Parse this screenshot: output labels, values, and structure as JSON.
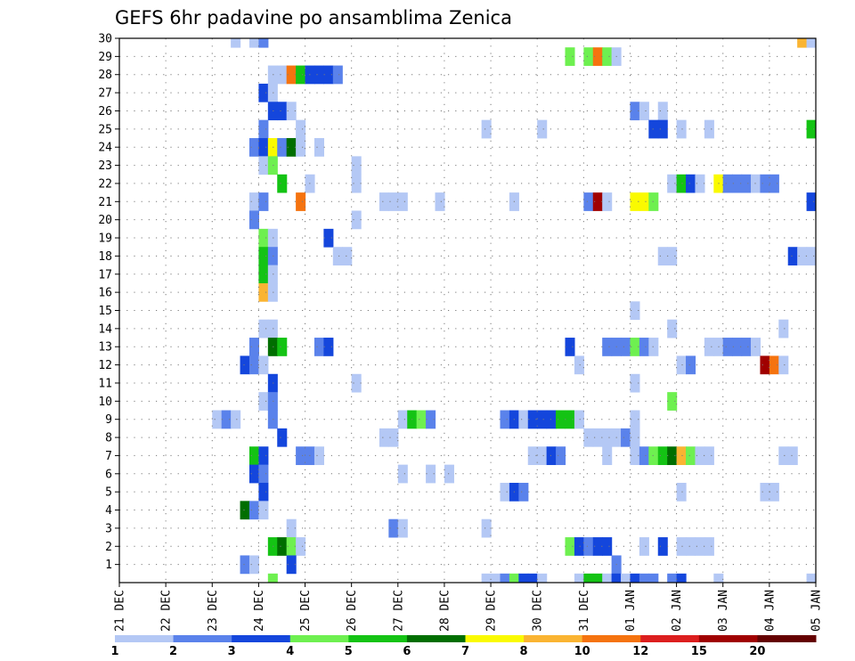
{
  "chart_data": {
    "type": "heatmap",
    "title": "GEFS 6hr padavine po ansamblima Zenica",
    "xlabel": "",
    "ylabel": "",
    "y_ticks": [
      "1",
      "2",
      "3",
      "4",
      "5",
      "6",
      "7",
      "8",
      "9",
      "10",
      "11",
      "12",
      "13",
      "14",
      "15",
      "16",
      "17",
      "18",
      "19",
      "20",
      "21",
      "22",
      "23",
      "24",
      "25",
      "26",
      "27",
      "28",
      "29",
      "30"
    ],
    "x_ticks": [
      "21 DEC",
      "22 DEC",
      "23 DEC",
      "24 DEC",
      "25 DEC",
      "26 DEC",
      "27 DEC",
      "28 DEC",
      "29 DEC",
      "30 DEC",
      "31 DEC",
      "01 JAN",
      "02 JAN",
      "03 JAN",
      "04 JAN",
      "05 JAN"
    ],
    "x_range_days": [
      0,
      15
    ],
    "y_range_members": [
      0,
      30
    ],
    "colorbar": {
      "labels": [
        "1",
        "2",
        "3",
        "4",
        "5",
        "6",
        "7",
        "8",
        "10",
        "12",
        "15",
        "20"
      ],
      "colors": [
        "#b4c8f5",
        "#5a82eb",
        "#1446dc",
        "#6ef050",
        "#14c314",
        "#006e00",
        "#fafa00",
        "#fab432",
        "#f5730f",
        "#dc1e1e",
        "#a00000",
        "#640000"
      ]
    },
    "cells": [
      {
        "d": 2.4,
        "m": 30,
        "c": 0
      },
      {
        "d": 2.8,
        "m": 30,
        "c": 0
      },
      {
        "d": 3.0,
        "m": 30,
        "c": 1
      },
      {
        "d": 14.6,
        "m": 30,
        "c": 7
      },
      {
        "d": 14.8,
        "m": 30,
        "c": 0
      },
      {
        "d": 9.6,
        "m": 29,
        "c": 3
      },
      {
        "d": 10.0,
        "m": 29,
        "c": 3
      },
      {
        "d": 10.2,
        "m": 29,
        "c": 8
      },
      {
        "d": 10.4,
        "m": 29,
        "c": 3
      },
      {
        "d": 10.6,
        "m": 29,
        "c": 0
      },
      {
        "d": 3.2,
        "m": 28,
        "c": 0
      },
      {
        "d": 3.4,
        "m": 28,
        "c": 0
      },
      {
        "d": 3.6,
        "m": 28,
        "c": 8
      },
      {
        "d": 3.8,
        "m": 28,
        "c": 4
      },
      {
        "d": 4.0,
        "m": 28,
        "c": 2
      },
      {
        "d": 4.2,
        "m": 28,
        "c": 2
      },
      {
        "d": 4.4,
        "m": 28,
        "c": 2
      },
      {
        "d": 4.6,
        "m": 28,
        "c": 1
      },
      {
        "d": 3.0,
        "m": 27,
        "c": 2
      },
      {
        "d": 3.2,
        "m": 27,
        "c": 0
      },
      {
        "d": 3.2,
        "m": 26,
        "c": 2
      },
      {
        "d": 3.4,
        "m": 26,
        "c": 2
      },
      {
        "d": 3.6,
        "m": 26,
        "c": 0
      },
      {
        "d": 11.0,
        "m": 26,
        "c": 1
      },
      {
        "d": 11.2,
        "m": 26,
        "c": 0
      },
      {
        "d": 11.6,
        "m": 26,
        "c": 0
      },
      {
        "d": 3.0,
        "m": 25,
        "c": 1
      },
      {
        "d": 3.8,
        "m": 25,
        "c": 0
      },
      {
        "d": 7.8,
        "m": 25,
        "c": 0
      },
      {
        "d": 9.0,
        "m": 25,
        "c": 0
      },
      {
        "d": 11.4,
        "m": 25,
        "c": 2
      },
      {
        "d": 11.6,
        "m": 25,
        "c": 2
      },
      {
        "d": 12.0,
        "m": 25,
        "c": 0
      },
      {
        "d": 12.6,
        "m": 25,
        "c": 0
      },
      {
        "d": 14.8,
        "m": 25,
        "c": 4
      },
      {
        "d": 15.0,
        "m": 25,
        "c": 0
      },
      {
        "d": 2.8,
        "m": 24,
        "c": 1
      },
      {
        "d": 3.0,
        "m": 24,
        "c": 2
      },
      {
        "d": 3.2,
        "m": 24,
        "c": 6
      },
      {
        "d": 3.4,
        "m": 24,
        "c": 1
      },
      {
        "d": 3.6,
        "m": 24,
        "c": 5
      },
      {
        "d": 3.8,
        "m": 24,
        "c": 0
      },
      {
        "d": 4.2,
        "m": 24,
        "c": 0
      },
      {
        "d": 3.0,
        "m": 23,
        "c": 0
      },
      {
        "d": 3.2,
        "m": 23,
        "c": 3
      },
      {
        "d": 5.0,
        "m": 23,
        "c": 0
      },
      {
        "d": 15.0,
        "m": 23,
        "c": 0
      },
      {
        "d": 3.4,
        "m": 22,
        "c": 4
      },
      {
        "d": 4.0,
        "m": 22,
        "c": 0
      },
      {
        "d": 5.0,
        "m": 22,
        "c": 0
      },
      {
        "d": 11.8,
        "m": 22,
        "c": 0
      },
      {
        "d": 12.0,
        "m": 22,
        "c": 4
      },
      {
        "d": 12.2,
        "m": 22,
        "c": 2
      },
      {
        "d": 12.4,
        "m": 22,
        "c": 0
      },
      {
        "d": 12.8,
        "m": 22,
        "c": 6
      },
      {
        "d": 13.0,
        "m": 22,
        "c": 1
      },
      {
        "d": 13.2,
        "m": 22,
        "c": 1
      },
      {
        "d": 13.4,
        "m": 22,
        "c": 1
      },
      {
        "d": 13.6,
        "m": 22,
        "c": 0
      },
      {
        "d": 13.8,
        "m": 22,
        "c": 1
      },
      {
        "d": 14.0,
        "m": 22,
        "c": 1
      },
      {
        "d": 2.8,
        "m": 21,
        "c": 0
      },
      {
        "d": 3.0,
        "m": 21,
        "c": 1
      },
      {
        "d": 3.8,
        "m": 21,
        "c": 8
      },
      {
        "d": 5.6,
        "m": 21,
        "c": 0
      },
      {
        "d": 5.8,
        "m": 21,
        "c": 0
      },
      {
        "d": 6.0,
        "m": 21,
        "c": 0
      },
      {
        "d": 6.8,
        "m": 21,
        "c": 0
      },
      {
        "d": 8.4,
        "m": 21,
        "c": 0
      },
      {
        "d": 10.0,
        "m": 21,
        "c": 1
      },
      {
        "d": 10.2,
        "m": 21,
        "c": 10
      },
      {
        "d": 10.4,
        "m": 21,
        "c": 0
      },
      {
        "d": 11.0,
        "m": 21,
        "c": 6
      },
      {
        "d": 11.2,
        "m": 21,
        "c": 6
      },
      {
        "d": 11.4,
        "m": 21,
        "c": 3
      },
      {
        "d": 14.8,
        "m": 21,
        "c": 2
      },
      {
        "d": 15.0,
        "m": 21,
        "c": 0
      },
      {
        "d": 2.8,
        "m": 20,
        "c": 1
      },
      {
        "d": 5.0,
        "m": 20,
        "c": 0
      },
      {
        "d": 3.0,
        "m": 19,
        "c": 3
      },
      {
        "d": 3.2,
        "m": 19,
        "c": 0
      },
      {
        "d": 4.4,
        "m": 19,
        "c": 2
      },
      {
        "d": 3.0,
        "m": 18,
        "c": 4
      },
      {
        "d": 3.2,
        "m": 18,
        "c": 1
      },
      {
        "d": 4.6,
        "m": 18,
        "c": 0
      },
      {
        "d": 4.8,
        "m": 18,
        "c": 0
      },
      {
        "d": 11.6,
        "m": 18,
        "c": 0
      },
      {
        "d": 11.8,
        "m": 18,
        "c": 0
      },
      {
        "d": 14.4,
        "m": 18,
        "c": 2
      },
      {
        "d": 14.6,
        "m": 18,
        "c": 0
      },
      {
        "d": 14.8,
        "m": 18,
        "c": 0
      },
      {
        "d": 15.0,
        "m": 18,
        "c": 6
      },
      {
        "d": 3.0,
        "m": 17,
        "c": 4
      },
      {
        "d": 3.2,
        "m": 17,
        "c": 0
      },
      {
        "d": 3.0,
        "m": 16,
        "c": 7
      },
      {
        "d": 3.2,
        "m": 16,
        "c": 0
      },
      {
        "d": 11.0,
        "m": 15,
        "c": 0
      },
      {
        "d": 3.0,
        "m": 14,
        "c": 0
      },
      {
        "d": 3.2,
        "m": 14,
        "c": 0
      },
      {
        "d": 11.8,
        "m": 14,
        "c": 0
      },
      {
        "d": 14.2,
        "m": 14,
        "c": 0
      },
      {
        "d": 2.8,
        "m": 13,
        "c": 1
      },
      {
        "d": 3.2,
        "m": 13,
        "c": 5
      },
      {
        "d": 3.4,
        "m": 13,
        "c": 4
      },
      {
        "d": 4.2,
        "m": 13,
        "c": 1
      },
      {
        "d": 4.4,
        "m": 13,
        "c": 2
      },
      {
        "d": 9.6,
        "m": 13,
        "c": 2
      },
      {
        "d": 10.4,
        "m": 13,
        "c": 1
      },
      {
        "d": 10.6,
        "m": 13,
        "c": 1
      },
      {
        "d": 10.8,
        "m": 13,
        "c": 1
      },
      {
        "d": 11.0,
        "m": 13,
        "c": 3
      },
      {
        "d": 11.2,
        "m": 13,
        "c": 1
      },
      {
        "d": 11.4,
        "m": 13,
        "c": 0
      },
      {
        "d": 12.6,
        "m": 13,
        "c": 0
      },
      {
        "d": 12.8,
        "m": 13,
        "c": 0
      },
      {
        "d": 13.0,
        "m": 13,
        "c": 1
      },
      {
        "d": 13.2,
        "m": 13,
        "c": 1
      },
      {
        "d": 13.4,
        "m": 13,
        "c": 1
      },
      {
        "d": 13.6,
        "m": 13,
        "c": 0
      },
      {
        "d": 2.6,
        "m": 12,
        "c": 2
      },
      {
        "d": 2.8,
        "m": 12,
        "c": 1
      },
      {
        "d": 3.0,
        "m": 12,
        "c": 0
      },
      {
        "d": 9.8,
        "m": 12,
        "c": 0
      },
      {
        "d": 12.0,
        "m": 12,
        "c": 0
      },
      {
        "d": 12.2,
        "m": 12,
        "c": 1
      },
      {
        "d": 13.8,
        "m": 12,
        "c": 10
      },
      {
        "d": 14.0,
        "m": 12,
        "c": 8
      },
      {
        "d": 14.2,
        "m": 12,
        "c": 0
      },
      {
        "d": 3.2,
        "m": 11,
        "c": 2
      },
      {
        "d": 5.0,
        "m": 11,
        "c": 0
      },
      {
        "d": 11.0,
        "m": 11,
        "c": 0
      },
      {
        "d": 3.0,
        "m": 10,
        "c": 0
      },
      {
        "d": 3.2,
        "m": 10,
        "c": 1
      },
      {
        "d": 11.8,
        "m": 10,
        "c": 3
      },
      {
        "d": 2.0,
        "m": 9,
        "c": 0
      },
      {
        "d": 2.2,
        "m": 9,
        "c": 1
      },
      {
        "d": 2.4,
        "m": 9,
        "c": 0
      },
      {
        "d": 3.2,
        "m": 9,
        "c": 1
      },
      {
        "d": 6.0,
        "m": 9,
        "c": 0
      },
      {
        "d": 6.2,
        "m": 9,
        "c": 4
      },
      {
        "d": 6.4,
        "m": 9,
        "c": 3
      },
      {
        "d": 6.6,
        "m": 9,
        "c": 1
      },
      {
        "d": 8.2,
        "m": 9,
        "c": 1
      },
      {
        "d": 8.4,
        "m": 9,
        "c": 2
      },
      {
        "d": 8.6,
        "m": 9,
        "c": 0
      },
      {
        "d": 8.8,
        "m": 9,
        "c": 2
      },
      {
        "d": 9.0,
        "m": 9,
        "c": 2
      },
      {
        "d": 9.2,
        "m": 9,
        "c": 2
      },
      {
        "d": 9.4,
        "m": 9,
        "c": 4
      },
      {
        "d": 9.6,
        "m": 9,
        "c": 4
      },
      {
        "d": 9.8,
        "m": 9,
        "c": 0
      },
      {
        "d": 11.0,
        "m": 9,
        "c": 0
      },
      {
        "d": 3.4,
        "m": 8,
        "c": 2
      },
      {
        "d": 5.6,
        "m": 8,
        "c": 0
      },
      {
        "d": 5.8,
        "m": 8,
        "c": 0
      },
      {
        "d": 10.0,
        "m": 8,
        "c": 0
      },
      {
        "d": 10.2,
        "m": 8,
        "c": 0
      },
      {
        "d": 10.4,
        "m": 8,
        "c": 0
      },
      {
        "d": 10.6,
        "m": 8,
        "c": 0
      },
      {
        "d": 10.8,
        "m": 8,
        "c": 1
      },
      {
        "d": 11.0,
        "m": 8,
        "c": 0
      },
      {
        "d": 2.8,
        "m": 7,
        "c": 4
      },
      {
        "d": 3.0,
        "m": 7,
        "c": 2
      },
      {
        "d": 3.8,
        "m": 7,
        "c": 1
      },
      {
        "d": 4.0,
        "m": 7,
        "c": 1
      },
      {
        "d": 4.2,
        "m": 7,
        "c": 0
      },
      {
        "d": 8.8,
        "m": 7,
        "c": 0
      },
      {
        "d": 9.0,
        "m": 7,
        "c": 0
      },
      {
        "d": 9.2,
        "m": 7,
        "c": 2
      },
      {
        "d": 9.4,
        "m": 7,
        "c": 1
      },
      {
        "d": 10.4,
        "m": 7,
        "c": 0
      },
      {
        "d": 11.0,
        "m": 7,
        "c": 0
      },
      {
        "d": 11.2,
        "m": 7,
        "c": 1
      },
      {
        "d": 11.4,
        "m": 7,
        "c": 3
      },
      {
        "d": 11.6,
        "m": 7,
        "c": 4
      },
      {
        "d": 11.8,
        "m": 7,
        "c": 5
      },
      {
        "d": 12.0,
        "m": 7,
        "c": 7
      },
      {
        "d": 12.2,
        "m": 7,
        "c": 3
      },
      {
        "d": 12.4,
        "m": 7,
        "c": 0
      },
      {
        "d": 12.6,
        "m": 7,
        "c": 0
      },
      {
        "d": 14.2,
        "m": 7,
        "c": 0
      },
      {
        "d": 14.4,
        "m": 7,
        "c": 0
      },
      {
        "d": 2.8,
        "m": 6,
        "c": 2
      },
      {
        "d": 3.0,
        "m": 6,
        "c": 1
      },
      {
        "d": 6.0,
        "m": 6,
        "c": 0
      },
      {
        "d": 6.6,
        "m": 6,
        "c": 0
      },
      {
        "d": 7.0,
        "m": 6,
        "c": 0
      },
      {
        "d": 3.0,
        "m": 5,
        "c": 2
      },
      {
        "d": 8.2,
        "m": 5,
        "c": 0
      },
      {
        "d": 8.4,
        "m": 5,
        "c": 2
      },
      {
        "d": 8.6,
        "m": 5,
        "c": 1
      },
      {
        "d": 12.0,
        "m": 5,
        "c": 0
      },
      {
        "d": 13.8,
        "m": 5,
        "c": 0
      },
      {
        "d": 14.0,
        "m": 5,
        "c": 0
      },
      {
        "d": 15.0,
        "m": 5,
        "c": 0
      },
      {
        "d": 2.6,
        "m": 4,
        "c": 5
      },
      {
        "d": 2.8,
        "m": 4,
        "c": 1
      },
      {
        "d": 3.0,
        "m": 4,
        "c": 0
      },
      {
        "d": 3.6,
        "m": 3,
        "c": 0
      },
      {
        "d": 5.8,
        "m": 3,
        "c": 1
      },
      {
        "d": 6.0,
        "m": 3,
        "c": 0
      },
      {
        "d": 7.8,
        "m": 3,
        "c": 0
      },
      {
        "d": 3.2,
        "m": 2,
        "c": 4
      },
      {
        "d": 3.4,
        "m": 2,
        "c": 5
      },
      {
        "d": 3.6,
        "m": 2,
        "c": 3
      },
      {
        "d": 3.8,
        "m": 2,
        "c": 0
      },
      {
        "d": 9.6,
        "m": 2,
        "c": 3
      },
      {
        "d": 9.8,
        "m": 2,
        "c": 2
      },
      {
        "d": 10.0,
        "m": 2,
        "c": 1
      },
      {
        "d": 10.2,
        "m": 2,
        "c": 2
      },
      {
        "d": 10.4,
        "m": 2,
        "c": 2
      },
      {
        "d": 11.2,
        "m": 2,
        "c": 0
      },
      {
        "d": 11.6,
        "m": 2,
        "c": 2
      },
      {
        "d": 12.0,
        "m": 2,
        "c": 0
      },
      {
        "d": 12.2,
        "m": 2,
        "c": 0
      },
      {
        "d": 12.4,
        "m": 2,
        "c": 0
      },
      {
        "d": 12.6,
        "m": 2,
        "c": 0
      },
      {
        "d": 2.6,
        "m": 1,
        "c": 1
      },
      {
        "d": 2.8,
        "m": 1,
        "c": 0
      },
      {
        "d": 3.6,
        "m": 1,
        "c": 2
      },
      {
        "d": 10.6,
        "m": 1,
        "c": 1
      },
      {
        "d": 3.2,
        "m": 0,
        "c": 3
      },
      {
        "d": 7.8,
        "m": 0,
        "c": 0
      },
      {
        "d": 8.0,
        "m": 0,
        "c": 0
      },
      {
        "d": 8.2,
        "m": 0,
        "c": 1
      },
      {
        "d": 8.4,
        "m": 0,
        "c": 3
      },
      {
        "d": 8.6,
        "m": 0,
        "c": 2
      },
      {
        "d": 8.8,
        "m": 0,
        "c": 2
      },
      {
        "d": 9.0,
        "m": 0,
        "c": 0
      },
      {
        "d": 9.8,
        "m": 0,
        "c": 0
      },
      {
        "d": 10.0,
        "m": 0,
        "c": 4
      },
      {
        "d": 10.2,
        "m": 0,
        "c": 4
      },
      {
        "d": 10.4,
        "m": 0,
        "c": 0
      },
      {
        "d": 10.6,
        "m": 0,
        "c": 2
      },
      {
        "d": 10.8,
        "m": 0,
        "c": 0
      },
      {
        "d": 11.0,
        "m": 0,
        "c": 2
      },
      {
        "d": 11.2,
        "m": 0,
        "c": 1
      },
      {
        "d": 11.4,
        "m": 0,
        "c": 1
      },
      {
        "d": 11.8,
        "m": 0,
        "c": 1
      },
      {
        "d": 12.0,
        "m": 0,
        "c": 2
      },
      {
        "d": 12.8,
        "m": 0,
        "c": 0
      },
      {
        "d": 14.8,
        "m": 0,
        "c": 0
      },
      {
        "d": 15.0,
        "m": 0,
        "c": 7
      }
    ]
  }
}
